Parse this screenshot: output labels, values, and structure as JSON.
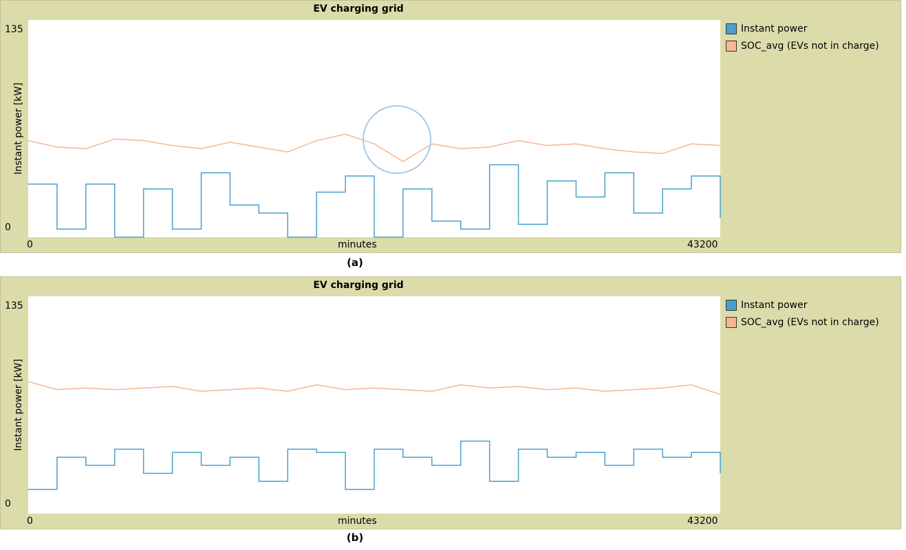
{
  "charts": [
    {
      "title": "EV charging grid",
      "caption": "(a)",
      "ylabel": "Instant power [kW]",
      "xlabel": "minutes",
      "ytick_top": "135",
      "ytick_bottom": "0",
      "xtick_left": "0",
      "xtick_right": "43200",
      "legend": [
        {
          "label": "Instant power",
          "color": "#4a9fcd"
        },
        {
          "label": "SOC_avg (EVs not in charge)",
          "color": "#f5b795"
        }
      ]
    },
    {
      "title": "EV charging grid",
      "caption": "(b)",
      "ylabel": "Instant power [kW]",
      "xlabel": "minutes",
      "ytick_top": "135",
      "ytick_bottom": "0",
      "xtick_left": "0",
      "xtick_right": "43200",
      "legend": [
        {
          "label": "Instant power",
          "color": "#4a9fcd"
        },
        {
          "label": "SOC_avg (EVs not in charge)",
          "color": "#f5b795"
        }
      ]
    }
  ],
  "chart_data": [
    {
      "type": "line",
      "title": "EV charging grid",
      "xlabel": "minutes",
      "ylabel": "Instant power [kW]",
      "xlim": [
        0,
        43200
      ],
      "ylim": [
        0,
        135
      ],
      "series": [
        {
          "name": "Instant power",
          "color": "#4a9fcd",
          "x": [
            0,
            1800,
            3600,
            5400,
            7200,
            9000,
            10800,
            12600,
            14400,
            16200,
            18000,
            19800,
            21600,
            23400,
            25200,
            27000,
            28800,
            30600,
            32400,
            34200,
            36000,
            37800,
            39600,
            41400,
            43200
          ],
          "y": [
            33,
            5,
            33,
            0,
            30,
            5,
            40,
            20,
            15,
            0,
            28,
            38,
            0,
            30,
            10,
            5,
            45,
            8,
            35,
            25,
            40,
            15,
            30,
            38,
            12
          ]
        },
        {
          "name": "SOC_avg (EVs not in charge)",
          "color": "#f5b795",
          "x": [
            0,
            1800,
            3600,
            5400,
            7200,
            9000,
            10800,
            12600,
            14400,
            16200,
            18000,
            19800,
            21600,
            23400,
            25200,
            27000,
            28800,
            30600,
            32400,
            34200,
            36000,
            37800,
            39600,
            41400,
            43200
          ],
          "y": [
            60,
            56,
            55,
            61,
            60,
            57,
            55,
            59,
            56,
            53,
            60,
            64,
            58,
            47,
            58,
            55,
            56,
            60,
            57,
            58,
            55,
            53,
            52,
            58,
            57
          ]
        }
      ]
    },
    {
      "type": "line",
      "title": "EV charging grid",
      "xlabel": "minutes",
      "ylabel": "Instant power [kW]",
      "xlim": [
        0,
        43200
      ],
      "ylim": [
        0,
        135
      ],
      "series": [
        {
          "name": "Instant power",
          "color": "#4a9fcd",
          "x": [
            0,
            1800,
            3600,
            5400,
            7200,
            9000,
            10800,
            12600,
            14400,
            16200,
            18000,
            19800,
            21600,
            23400,
            25200,
            27000,
            28800,
            30600,
            32400,
            34200,
            36000,
            37800,
            39600,
            41400,
            43200
          ],
          "y": [
            15,
            35,
            30,
            40,
            25,
            38,
            30,
            35,
            20,
            40,
            38,
            15,
            40,
            35,
            30,
            45,
            20,
            40,
            35,
            38,
            30,
            40,
            35,
            38,
            25
          ]
        },
        {
          "name": "SOC_avg (EVs not in charge)",
          "color": "#f5b795",
          "x": [
            0,
            1800,
            3600,
            5400,
            7200,
            9000,
            10800,
            12600,
            14400,
            16200,
            18000,
            19800,
            21600,
            23400,
            25200,
            27000,
            28800,
            30600,
            32400,
            34200,
            36000,
            37800,
            39600,
            41400,
            43200
          ],
          "y": [
            82,
            77,
            78,
            77,
            78,
            79,
            76,
            77,
            78,
            76,
            80,
            77,
            78,
            77,
            76,
            80,
            78,
            79,
            77,
            78,
            76,
            77,
            78,
            80,
            74
          ]
        }
      ]
    }
  ]
}
